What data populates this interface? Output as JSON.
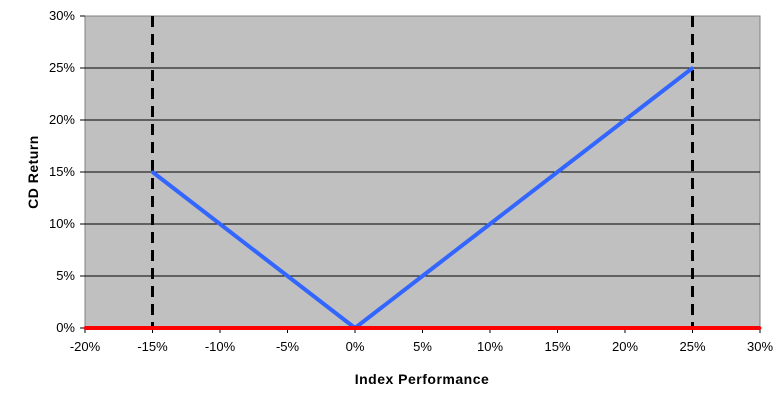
{
  "chart_data": {
    "type": "line",
    "xlabel": "Index Performance",
    "ylabel": "CD Return",
    "xlim": [
      -20,
      30
    ],
    "ylim": [
      0,
      30
    ],
    "x_ticks": [
      "-20%",
      "-15%",
      "-10%",
      "-5%",
      "0%",
      "5%",
      "10%",
      "15%",
      "20%",
      "25%",
      "30%"
    ],
    "y_ticks": [
      "0%",
      "5%",
      "10%",
      "15%",
      "20%",
      "25%",
      "30%"
    ],
    "grid": "horizontal",
    "legend": "none",
    "plot_background": "#c0c0c0",
    "series": [
      {
        "color": "#3366ff",
        "x": [
          -15,
          -10,
          -5,
          0,
          5,
          10,
          15,
          20,
          25
        ],
        "y": [
          15,
          10,
          5,
          0,
          5,
          10,
          15,
          20,
          25
        ]
      },
      {
        "color": "#ff0000",
        "x": [
          -20,
          30
        ],
        "y": [
          0,
          0
        ]
      }
    ],
    "reference_lines": [
      {
        "x": -15,
        "style": "dashed",
        "color": "#000000"
      },
      {
        "x": 25,
        "style": "dashed",
        "color": "#000000"
      }
    ]
  }
}
